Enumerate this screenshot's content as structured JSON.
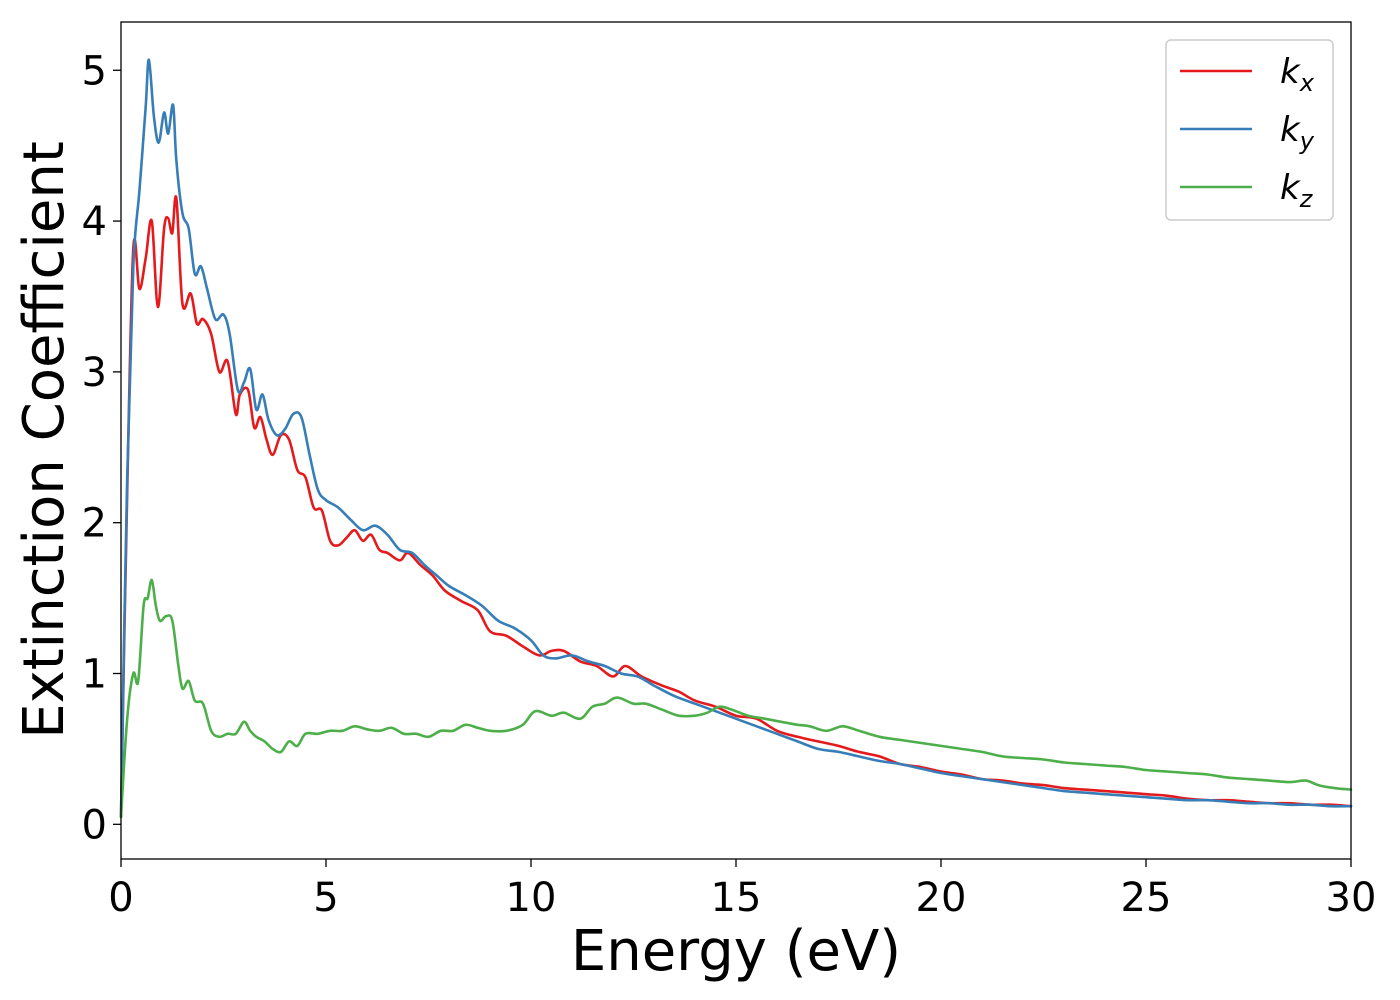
{
  "chart_data": {
    "type": "line",
    "xlabel": "Energy (eV)",
    "ylabel": "Extinction Coefficient",
    "xlim": [
      0,
      30
    ],
    "ylim": [
      -0.23,
      5.32
    ],
    "xticks": [
      0,
      5,
      10,
      15,
      20,
      25,
      30
    ],
    "xtick_labels": [
      "0",
      "5",
      "10",
      "15",
      "20",
      "25",
      "30"
    ],
    "yticks": [
      0,
      1,
      2,
      3,
      4,
      5
    ],
    "ytick_labels": [
      "0",
      "1",
      "2",
      "3",
      "4",
      "5"
    ],
    "grid": false,
    "legend": {
      "position": "top-right"
    },
    "series": [
      {
        "name": "k_x",
        "label_main": "k",
        "label_sub": "x",
        "color": "#e41a1c",
        "x": [
          0,
          0.15,
          0.3,
          0.45,
          0.6,
          0.75,
          0.9,
          1.05,
          1.15,
          1.25,
          1.35,
          1.5,
          1.7,
          1.85,
          2.0,
          2.2,
          2.4,
          2.6,
          2.8,
          2.9,
          3.1,
          3.25,
          3.4,
          3.55,
          3.7,
          3.9,
          4.1,
          4.3,
          4.5,
          4.7,
          4.9,
          5.1,
          5.3,
          5.5,
          5.7,
          5.9,
          6.1,
          6.3,
          6.5,
          6.8,
          7.0,
          7.3,
          7.6,
          7.9,
          8.3,
          8.7,
          9.0,
          9.4,
          9.8,
          10.2,
          10.5,
          10.8,
          11.2,
          11.6,
          12.0,
          12.3,
          12.7,
          13.2,
          13.6,
          14.0,
          14.5,
          15.0,
          15.5,
          16.0,
          16.5,
          17.0,
          17.5,
          18.0,
          18.5,
          19.0,
          19.5,
          20.0,
          20.5,
          21.0,
          21.5,
          22.0,
          22.5,
          23.0,
          23.5,
          24.0,
          24.5,
          25.0,
          25.5,
          26.0,
          26.5,
          27.0,
          27.5,
          28.0,
          28.5,
          29.0,
          29.5,
          30.0
        ],
        "y": [
          0.05,
          2.2,
          3.82,
          3.55,
          3.75,
          4.0,
          3.43,
          3.95,
          4.02,
          3.92,
          4.15,
          3.45,
          3.52,
          3.32,
          3.35,
          3.25,
          3.0,
          3.07,
          2.72,
          2.85,
          2.88,
          2.63,
          2.7,
          2.55,
          2.45,
          2.58,
          2.55,
          2.35,
          2.3,
          2.1,
          2.08,
          1.88,
          1.85,
          1.9,
          1.95,
          1.88,
          1.92,
          1.82,
          1.8,
          1.75,
          1.8,
          1.72,
          1.65,
          1.55,
          1.48,
          1.42,
          1.28,
          1.25,
          1.18,
          1.12,
          1.15,
          1.15,
          1.08,
          1.05,
          0.98,
          1.05,
          0.98,
          0.92,
          0.88,
          0.82,
          0.78,
          0.72,
          0.7,
          0.62,
          0.58,
          0.55,
          0.52,
          0.48,
          0.45,
          0.4,
          0.38,
          0.35,
          0.33,
          0.3,
          0.29,
          0.27,
          0.26,
          0.24,
          0.23,
          0.22,
          0.21,
          0.2,
          0.19,
          0.17,
          0.16,
          0.16,
          0.15,
          0.14,
          0.14,
          0.13,
          0.13,
          0.12
        ]
      },
      {
        "name": "k_y",
        "label_main": "k",
        "label_sub": "y",
        "color": "#377eb8",
        "x": [
          0,
          0.15,
          0.3,
          0.45,
          0.6,
          0.68,
          0.8,
          0.92,
          1.05,
          1.15,
          1.27,
          1.35,
          1.5,
          1.65,
          1.8,
          1.95,
          2.1,
          2.3,
          2.5,
          2.65,
          2.85,
          3.0,
          3.15,
          3.3,
          3.45,
          3.6,
          3.8,
          4.0,
          4.2,
          4.4,
          4.6,
          4.8,
          5.0,
          5.3,
          5.6,
          5.9,
          6.2,
          6.5,
          6.8,
          7.1,
          7.4,
          7.7,
          8.0,
          8.4,
          8.8,
          9.2,
          9.6,
          10.0,
          10.3,
          10.6,
          11.0,
          11.4,
          11.8,
          12.2,
          12.6,
          13.0,
          13.5,
          14.0,
          14.5,
          15.0,
          15.5,
          16.0,
          16.5,
          17.0,
          17.5,
          18.0,
          18.5,
          19.0,
          19.5,
          20.0,
          20.5,
          21.0,
          21.5,
          22.0,
          22.5,
          23.0,
          23.5,
          24.0,
          24.5,
          25.0,
          25.5,
          26.0,
          26.5,
          27.0,
          27.5,
          28.0,
          28.5,
          29.0,
          29.5,
          30.0
        ],
        "y": [
          0.05,
          2.3,
          3.7,
          4.2,
          4.75,
          5.07,
          4.7,
          4.52,
          4.72,
          4.58,
          4.77,
          4.4,
          4.05,
          3.95,
          3.65,
          3.7,
          3.55,
          3.35,
          3.38,
          3.25,
          2.88,
          2.93,
          3.02,
          2.75,
          2.85,
          2.68,
          2.58,
          2.62,
          2.72,
          2.7,
          2.45,
          2.22,
          2.15,
          2.1,
          2.02,
          1.95,
          1.98,
          1.92,
          1.82,
          1.8,
          1.72,
          1.65,
          1.58,
          1.52,
          1.45,
          1.35,
          1.3,
          1.22,
          1.12,
          1.1,
          1.12,
          1.08,
          1.05,
          1.0,
          0.98,
          0.92,
          0.85,
          0.8,
          0.75,
          0.7,
          0.65,
          0.6,
          0.55,
          0.5,
          0.48,
          0.45,
          0.42,
          0.4,
          0.37,
          0.34,
          0.32,
          0.3,
          0.28,
          0.26,
          0.24,
          0.22,
          0.21,
          0.2,
          0.19,
          0.18,
          0.17,
          0.16,
          0.16,
          0.15,
          0.14,
          0.14,
          0.13,
          0.13,
          0.12,
          0.12
        ]
      },
      {
        "name": "k_z",
        "label_main": "k",
        "label_sub": "z",
        "color": "#4daf4a",
        "x": [
          0,
          0.15,
          0.3,
          0.42,
          0.55,
          0.65,
          0.75,
          0.85,
          0.95,
          1.1,
          1.25,
          1.4,
          1.5,
          1.65,
          1.8,
          2.0,
          2.2,
          2.4,
          2.6,
          2.8,
          3.0,
          3.15,
          3.3,
          3.5,
          3.7,
          3.9,
          4.1,
          4.3,
          4.5,
          4.8,
          5.1,
          5.4,
          5.7,
          6.0,
          6.3,
          6.6,
          6.9,
          7.2,
          7.5,
          7.8,
          8.1,
          8.4,
          8.7,
          9.0,
          9.4,
          9.8,
          10.1,
          10.5,
          10.8,
          11.2,
          11.5,
          11.8,
          12.1,
          12.5,
          12.8,
          13.2,
          13.6,
          14.0,
          14.3,
          14.6,
          14.9,
          15.3,
          15.7,
          16.1,
          16.5,
          16.8,
          17.2,
          17.6,
          18.0,
          18.5,
          19.0,
          19.5,
          20.0,
          20.5,
          21.0,
          21.5,
          22.0,
          22.5,
          23.0,
          23.5,
          24.0,
          24.5,
          25.0,
          25.5,
          26.0,
          26.5,
          27.0,
          27.5,
          28.0,
          28.5,
          28.9,
          29.2,
          29.6,
          30.0
        ],
        "y": [
          0.05,
          0.7,
          1.0,
          0.95,
          1.45,
          1.5,
          1.62,
          1.45,
          1.35,
          1.38,
          1.35,
          1.05,
          0.9,
          0.95,
          0.82,
          0.8,
          0.62,
          0.58,
          0.6,
          0.6,
          0.68,
          0.62,
          0.58,
          0.55,
          0.5,
          0.48,
          0.55,
          0.52,
          0.6,
          0.6,
          0.62,
          0.62,
          0.65,
          0.63,
          0.62,
          0.64,
          0.6,
          0.6,
          0.58,
          0.62,
          0.62,
          0.66,
          0.64,
          0.62,
          0.62,
          0.66,
          0.75,
          0.72,
          0.74,
          0.7,
          0.78,
          0.8,
          0.84,
          0.8,
          0.8,
          0.76,
          0.72,
          0.72,
          0.74,
          0.78,
          0.76,
          0.72,
          0.7,
          0.68,
          0.66,
          0.65,
          0.62,
          0.65,
          0.62,
          0.58,
          0.56,
          0.54,
          0.52,
          0.5,
          0.48,
          0.45,
          0.44,
          0.43,
          0.41,
          0.4,
          0.39,
          0.38,
          0.36,
          0.35,
          0.34,
          0.33,
          0.31,
          0.3,
          0.29,
          0.28,
          0.29,
          0.26,
          0.24,
          0.23
        ]
      }
    ]
  }
}
